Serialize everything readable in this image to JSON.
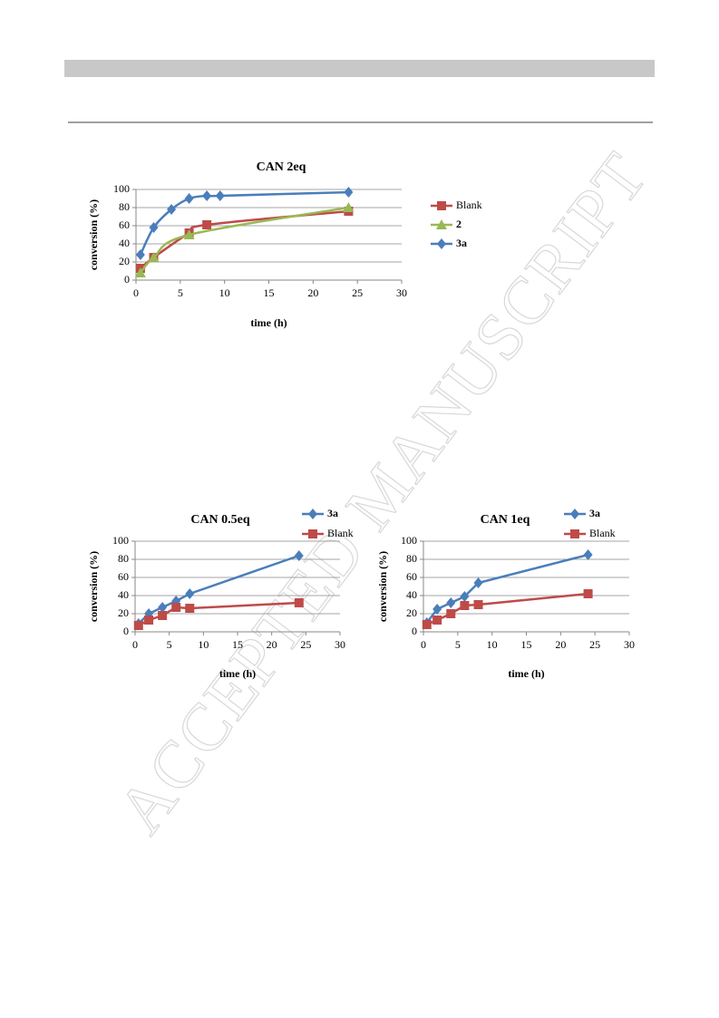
{
  "watermark": "ACCEPTED MANUSCRIPT",
  "chart_data": [
    {
      "type": "line",
      "title": "CAN 2eq",
      "x_label": "time (h)",
      "y_label": "conversion (%)",
      "xlim": [
        0,
        30
      ],
      "xticks": [
        0,
        5,
        10,
        15,
        20,
        25,
        30
      ],
      "ylim": [
        0,
        100
      ],
      "yticks": [
        0,
        20,
        40,
        60,
        80,
        100
      ],
      "grid": true,
      "smooth": true,
      "legend": "right",
      "series": [
        {
          "name": "Blank",
          "color": "#be4b48",
          "marker": "square",
          "x": [
            0.5,
            2,
            6,
            8,
            24
          ],
          "values": [
            13,
            25,
            52,
            61,
            76
          ]
        },
        {
          "name": "2",
          "color": "#98b954",
          "marker": "triangle",
          "x": [
            0.5,
            2,
            6,
            24
          ],
          "values": [
            8,
            25,
            50,
            80
          ]
        },
        {
          "name": "3a",
          "color": "#4a7ebb",
          "marker": "diamond",
          "x": [
            0.5,
            2,
            4,
            6,
            8,
            9.5,
            24
          ],
          "values": [
            28,
            58,
            78,
            90,
            93,
            93,
            97
          ]
        }
      ]
    },
    {
      "type": "line",
      "title": "CAN 0.5eq",
      "x_label": "time (h)",
      "y_label": "conversion (%)",
      "xlim": [
        0,
        30
      ],
      "xticks": [
        0,
        5,
        10,
        15,
        20,
        25,
        30
      ],
      "ylim": [
        0,
        100
      ],
      "yticks": [
        0,
        20,
        40,
        60,
        80,
        100
      ],
      "grid": true,
      "smooth": false,
      "legend": "top right",
      "series": [
        {
          "name": "3a",
          "color": "#4a7ebb",
          "marker": "diamond",
          "x": [
            0.5,
            2,
            4,
            6,
            8,
            24
          ],
          "values": [
            9,
            20,
            27,
            34,
            42,
            84
          ]
        },
        {
          "name": "Blank",
          "color": "#be4b48",
          "marker": "square",
          "x": [
            0.5,
            2,
            4,
            6,
            8,
            24
          ],
          "values": [
            7,
            13,
            18,
            27,
            26,
            32
          ]
        }
      ]
    },
    {
      "type": "line",
      "title": "CAN 1eq",
      "x_label": "time (h)",
      "y_label": "conversion (%)",
      "xlim": [
        0,
        30
      ],
      "xticks": [
        0,
        5,
        10,
        15,
        20,
        25,
        30
      ],
      "ylim": [
        0,
        100
      ],
      "yticks": [
        0,
        20,
        40,
        60,
        80,
        100
      ],
      "grid": true,
      "smooth": false,
      "legend": "top right",
      "series": [
        {
          "name": "3a",
          "color": "#4a7ebb",
          "marker": "diamond",
          "x": [
            0.5,
            2,
            4,
            6,
            8,
            24
          ],
          "values": [
            10,
            25,
            32,
            39,
            54,
            85
          ]
        },
        {
          "name": "Blank",
          "color": "#be4b48",
          "marker": "square",
          "x": [
            0.5,
            2,
            4,
            6,
            8,
            24
          ],
          "values": [
            8,
            13,
            20,
            29,
            30,
            42
          ]
        }
      ]
    }
  ]
}
